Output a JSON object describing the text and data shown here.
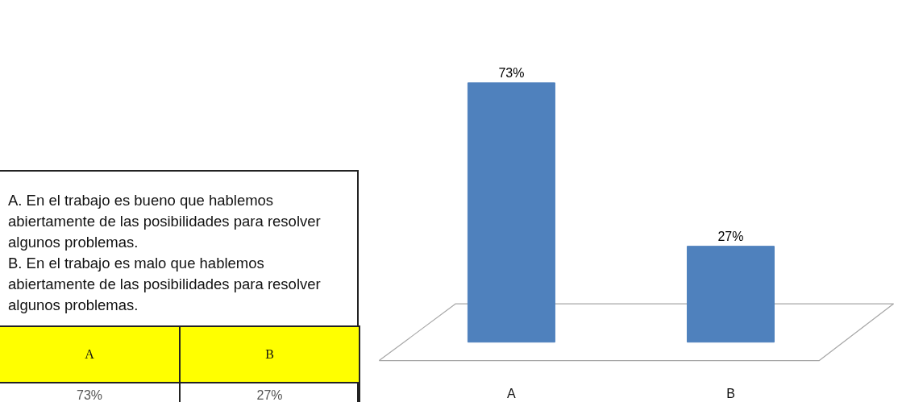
{
  "chart_data": {
    "type": "bar",
    "categories": [
      "A",
      "B"
    ],
    "values": [
      73,
      27
    ],
    "color": "#4f81bd",
    "value_labels": [
      "73%",
      "27%"
    ],
    "annotations": [
      "A. En el trabajo es bueno que hablemos abiertamente de las posibilidades para resolver algunos problemas.",
      "B. En el trabajo es malo que hablemos abiertamente de las posibilidades para resolver algunos problemas."
    ]
  }
}
